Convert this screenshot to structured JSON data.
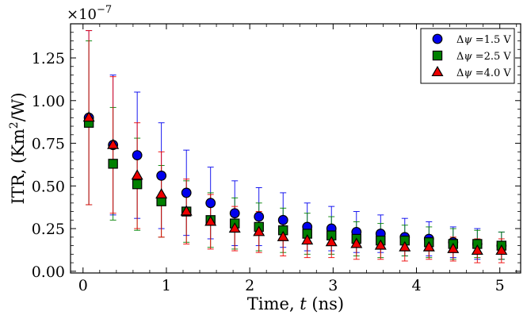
{
  "chart_data": {
    "type": "scatter",
    "title": "",
    "xlabel_main": "Time, ",
    "xlabel_italic": "t",
    "xlabel_unit": " (ns)",
    "ylabel_main": "ITR, (Km",
    "ylabel_sup": "2",
    "ylabel_tail": "/W)",
    "y_offset_base": "×10",
    "y_offset_exp": "−7",
    "xlim": [
      -0.15,
      5.25
    ],
    "ylim": [
      -0.01,
      1.45
    ],
    "x_ticks": [
      0,
      1,
      2,
      3,
      4,
      5
    ],
    "x_tick_labels": [
      "0",
      "1",
      "2",
      "3",
      "4",
      "5"
    ],
    "y_ticks": [
      0.0,
      0.25,
      0.5,
      0.75,
      1.0,
      1.25
    ],
    "y_tick_labels": [
      "0.00",
      "0.25",
      "0.50",
      "0.75",
      "1.00",
      "1.25"
    ],
    "legend_position": "top-right",
    "x": [
      0.07,
      0.36,
      0.65,
      0.94,
      1.24,
      1.53,
      1.82,
      2.11,
      2.4,
      2.69,
      2.98,
      3.28,
      3.57,
      3.86,
      4.15,
      4.44,
      4.73,
      5.02
    ],
    "series": [
      {
        "name": "Δψ =1.5 V",
        "label_prefix": "Δ",
        "label_sym": "ψ",
        "label_value": " =1.5 V",
        "marker": "circle",
        "color": "#0000ee",
        "values": [
          0.9,
          0.74,
          0.68,
          0.56,
          0.46,
          0.4,
          0.34,
          0.32,
          0.3,
          0.26,
          0.25,
          0.23,
          0.22,
          0.2,
          0.19,
          0.17,
          0.16,
          0.15
        ],
        "yerr": [
          0.51,
          0.41,
          0.37,
          0.31,
          0.25,
          0.21,
          0.19,
          0.17,
          0.16,
          0.14,
          0.13,
          0.12,
          0.11,
          0.11,
          0.1,
          0.09,
          0.09,
          0.08
        ]
      },
      {
        "name": "Δψ =2.5 V",
        "label_prefix": "Δ",
        "label_sym": "ψ",
        "label_value": " =2.5 V",
        "marker": "square",
        "color": "#008000",
        "values": [
          0.87,
          0.63,
          0.51,
          0.41,
          0.35,
          0.3,
          0.28,
          0.26,
          0.24,
          0.22,
          0.21,
          0.19,
          0.18,
          0.18,
          0.17,
          0.16,
          0.16,
          0.15
        ],
        "yerr": [
          0.48,
          0.33,
          0.27,
          0.21,
          0.18,
          0.16,
          0.15,
          0.14,
          0.13,
          0.12,
          0.11,
          0.1,
          0.1,
          0.09,
          0.09,
          0.09,
          0.08,
          0.08
        ]
      },
      {
        "name": "Δψ =4.0 V",
        "label_prefix": "Δ",
        "label_sym": "ψ",
        "label_value": " =4.0 V",
        "marker": "triangle",
        "color": "#ee0000",
        "values": [
          0.9,
          0.74,
          0.56,
          0.45,
          0.35,
          0.29,
          0.25,
          0.23,
          0.2,
          0.18,
          0.17,
          0.16,
          0.15,
          0.14,
          0.14,
          0.13,
          0.12,
          0.12
        ],
        "yerr": [
          0.51,
          0.4,
          0.31,
          0.25,
          0.19,
          0.16,
          0.13,
          0.12,
          0.11,
          0.1,
          0.09,
          0.09,
          0.08,
          0.08,
          0.07,
          0.07,
          0.07,
          0.07
        ]
      }
    ]
  }
}
